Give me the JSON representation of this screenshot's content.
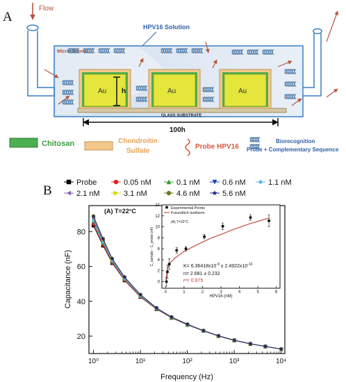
{
  "panel_a": {
    "letter": "A",
    "flow_label": "Flow",
    "solution_label": "HPV16 Solution",
    "microchannel_label": "Microchannel",
    "electrode_label": "Au",
    "height_label": "h",
    "substrate_label": "GLASS SUBSTRATE",
    "length_label": "100h",
    "legend": {
      "chitosan": "Chitosan",
      "chondroitin_line1": "Chondroitin",
      "chondroitin_line2": "Sulfate",
      "probe": "Probe HPV16",
      "biorec_line1": "Biorecognition",
      "biorec_line2": "Probe + Complementary Sequence"
    },
    "colors": {
      "electrode": "#e4e63c",
      "chitosan": "#4caf50",
      "chondroitin": "#f2c98a",
      "probe": "#d9583b",
      "microchannel": "#c9d9ec",
      "tube": "#3a7fc2"
    }
  },
  "panel_b": {
    "letter": "B",
    "main_chart": {
      "annotation": "(A)   T=22°C",
      "xlabel": "Frequency (Hz)",
      "ylabel": "Capacitance (nF)"
    },
    "inset_chart": {
      "annotation": "(A)   T=22°C",
      "xlabel": "HPV16 (nM)",
      "ylabel": "C_sample - C_probe (nF)",
      "legend_points": "Experimental Points",
      "legend_fit": "Freundlich Isotherm",
      "fit_k": "K= 6.36418x10",
      "fit_k_exp1": "-9",
      "fit_k_pm": " ± 2.4922x10",
      "fit_k_exp2": "-10",
      "fit_n": "n= 2.681 ± 0.232",
      "fit_r2": "r²= 0.975"
    }
  },
  "chart_data": [
    {
      "type": "line",
      "xscale": "log",
      "xlim": [
        0.8,
        12000
      ],
      "ylim": [
        10,
        95
      ],
      "x_ticks": [
        "10⁰",
        "10¹",
        "10²",
        "10³",
        "10⁴"
      ],
      "y_ticks": [
        "20",
        "40",
        "60",
        "80"
      ],
      "legend_placement": "top",
      "x": [
        1.0,
        1.6,
        2.5,
        4.6,
        10,
        22,
        46,
        100,
        220,
        460,
        1000,
        2200,
        4600,
        10000
      ],
      "series": [
        {
          "name": "Probe",
          "color": "#000000",
          "marker": "square",
          "values": [
            83.5,
            72,
            62,
            52,
            42.5,
            35.5,
            30.5,
            26.5,
            23,
            20,
            17.5,
            15.5,
            14,
            12.5
          ]
        },
        {
          "name": "0.05 nM",
          "color": "#e31a1c",
          "marker": "circle",
          "values": [
            84.5,
            72.5,
            62.3,
            52.2,
            42.6,
            35.6,
            30.5,
            26.5,
            23,
            20,
            17.5,
            15.5,
            14,
            12.5
          ]
        },
        {
          "name": "0.1 nM",
          "color": "#33a02c",
          "marker": "triangle-up",
          "values": [
            86,
            73.5,
            63,
            52.8,
            43,
            35.8,
            30.7,
            26.6,
            23.1,
            20.1,
            17.6,
            15.6,
            14,
            12.5
          ]
        },
        {
          "name": "0.6 nM",
          "color": "#1f3fbf",
          "marker": "triangle-down",
          "values": [
            87,
            74.5,
            63.5,
            53.2,
            43.2,
            36,
            30.8,
            26.7,
            23.1,
            20.1,
            17.6,
            15.6,
            14.1,
            12.5
          ]
        },
        {
          "name": "1.1 nM",
          "color": "#56b4e9",
          "marker": "diamond",
          "values": [
            86.5,
            74,
            63.3,
            53,
            43.1,
            35.9,
            30.8,
            26.7,
            23.1,
            20.1,
            17.6,
            15.6,
            14.1,
            12.5
          ]
        },
        {
          "name": "2.1 nM",
          "color": "#8e63b8",
          "marker": "triangle-left",
          "values": [
            88,
            75,
            64,
            53.5,
            43.5,
            36.1,
            30.9,
            26.8,
            23.2,
            20.2,
            17.7,
            15.6,
            14.1,
            12.6
          ]
        },
        {
          "name": "3.1 nM",
          "color": "#d4d400",
          "marker": "triangle-right",
          "values": [
            88.5,
            75.5,
            64.3,
            53.8,
            43.7,
            36.2,
            31,
            26.8,
            23.2,
            20.2,
            17.7,
            15.6,
            14.1,
            12.6
          ]
        },
        {
          "name": "4.6 nM",
          "color": "#6b7a1f",
          "marker": "hexagon",
          "values": [
            89,
            76,
            64.6,
            54,
            43.9,
            36.3,
            31,
            26.9,
            23.2,
            20.2,
            17.7,
            15.6,
            14.1,
            12.6
          ]
        },
        {
          "name": "5.6 nM",
          "color": "#1a237e",
          "marker": "star",
          "values": [
            88.8,
            75.8,
            64.5,
            53.9,
            43.8,
            36.2,
            31,
            26.8,
            23.2,
            20.2,
            17.7,
            15.6,
            14.1,
            12.6
          ]
        }
      ]
    },
    {
      "type": "scatter",
      "xlim": [
        -0.2,
        6.2
      ],
      "ylim": [
        -1.2,
        14
      ],
      "x_ticks": [
        "0",
        "1",
        "2",
        "3",
        "4",
        "5",
        "6"
      ],
      "y_ticks": [
        "0",
        "2",
        "4",
        "6",
        "8",
        "10",
        "12",
        "14"
      ],
      "legend_placement": "top-left",
      "points": {
        "name": "Experimental Points",
        "x": [
          0.05,
          0.1,
          0.2,
          0.6,
          1.1,
          2.1,
          3.1,
          4.6,
          5.6
        ],
        "y": [
          0,
          1.8,
          3.2,
          5.7,
          6.0,
          8.2,
          10.1,
          11.7,
          11.1
        ],
        "err": [
          0.8,
          1.2,
          1.0,
          0.5,
          0.4,
          0.4,
          0.6,
          0.5,
          1.1
        ]
      },
      "fit": {
        "name": "Freundlich Isotherm",
        "x": [
          0.02,
          0.1,
          0.25,
          0.5,
          1,
          1.5,
          2,
          2.5,
          3,
          3.5,
          4,
          4.5,
          5,
          5.5,
          5.6
        ],
        "y": [
          0.3,
          2.4,
          3.4,
          4.3,
          5.5,
          6.4,
          7.2,
          8.0,
          8.6,
          9.3,
          9.9,
          10.5,
          11.0,
          11.5,
          11.6
        ]
      }
    }
  ]
}
